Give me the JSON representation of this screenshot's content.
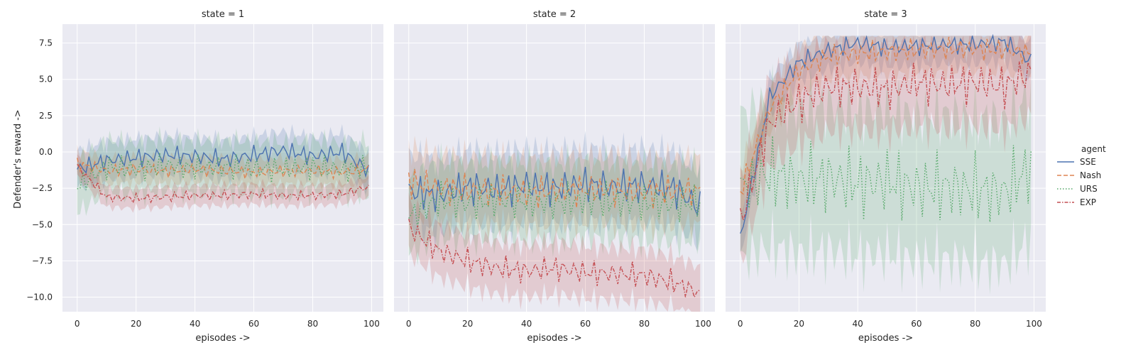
{
  "chart_data": {
    "type": "line",
    "ylabel": "Defender's reward ->",
    "xlabel": "episodes ->",
    "xlim": [
      -5,
      104
    ],
    "ylim": [
      -11,
      8.8
    ],
    "xticks": [
      0,
      20,
      40,
      60,
      80,
      100
    ],
    "yticks": [
      -10.0,
      -7.5,
      -5.0,
      -2.5,
      0.0,
      2.5,
      5.0,
      7.5
    ],
    "ytick_labels": [
      "−10.0",
      "−7.5",
      "−5.0",
      "−2.5",
      "0.0",
      "2.5",
      "5.0",
      "7.5"
    ],
    "grid": true,
    "legend": {
      "title": "agent",
      "placement": "right",
      "entries": [
        {
          "name": "SSE",
          "color": "#4c72b0",
          "dash": "solid"
        },
        {
          "name": "Nash",
          "color": "#dd8452",
          "dash": "dashed"
        },
        {
          "name": "URS",
          "color": "#55a868",
          "dash": "dotted"
        },
        {
          "name": "EXP",
          "color": "#c44e52",
          "dash": "dashdot"
        }
      ]
    },
    "panels": [
      {
        "title": "state = 1",
        "series": [
          {
            "name": "SSE",
            "color": "#4c72b0",
            "band": 1.3,
            "x": [
              0,
              10,
              20,
              30,
              40,
              50,
              60,
              70,
              80,
              90,
              99
            ],
            "y": [
              -1.2,
              -0.6,
              -0.4,
              -0.2,
              -0.3,
              -0.5,
              -0.2,
              0.1,
              -0.3,
              0.0,
              -1.3
            ]
          },
          {
            "name": "Nash",
            "color": "#dd8452",
            "band": 0.9,
            "x": [
              0,
              10,
              20,
              30,
              40,
              50,
              60,
              70,
              80,
              90,
              99
            ],
            "y": [
              -0.8,
              -1.3,
              -1.2,
              -1.3,
              -1.2,
              -1.3,
              -1.4,
              -1.3,
              -1.3,
              -1.4,
              -1.2
            ]
          },
          {
            "name": "URS",
            "color": "#55a868",
            "band": 1.8,
            "x": [
              0,
              10,
              20,
              30,
              40,
              50,
              60,
              70,
              80,
              90,
              99
            ],
            "y": [
              -2.4,
              -1.0,
              -1.2,
              -0.9,
              -1.1,
              -1.0,
              -1.1,
              -1.2,
              -1.0,
              -1.2,
              -1.1
            ]
          },
          {
            "name": "EXP",
            "color": "#c44e52",
            "band": 0.7,
            "x": [
              0,
              10,
              20,
              30,
              40,
              50,
              60,
              70,
              80,
              90,
              99
            ],
            "y": [
              -1.0,
              -3.1,
              -3.2,
              -3.1,
              -3.0,
              -3.0,
              -2.9,
              -3.0,
              -3.0,
              -2.9,
              -2.4
            ]
          }
        ]
      },
      {
        "title": "state = 2",
        "series": [
          {
            "name": "SSE",
            "color": "#4c72b0",
            "band": 2.5,
            "x": [
              0,
              10,
              20,
              30,
              40,
              50,
              60,
              70,
              80,
              90,
              99
            ],
            "y": [
              -2.7,
              -3.0,
              -2.4,
              -2.6,
              -2.3,
              -2.5,
              -2.2,
              -2.4,
              -2.3,
              -2.5,
              -3.8
            ]
          },
          {
            "name": "Nash",
            "color": "#dd8452",
            "band": 2.3,
            "x": [
              0,
              10,
              20,
              30,
              40,
              50,
              60,
              70,
              80,
              90,
              99
            ],
            "y": [
              -2.0,
              -2.5,
              -2.6,
              -2.7,
              -2.8,
              -2.7,
              -2.6,
              -2.6,
              -2.8,
              -2.7,
              -2.7
            ]
          },
          {
            "name": "URS",
            "color": "#55a868",
            "band": 2.6,
            "x": [
              0,
              10,
              20,
              30,
              40,
              50,
              60,
              70,
              80,
              90,
              99
            ],
            "y": [
              -4.5,
              -3.3,
              -3.5,
              -3.3,
              -3.4,
              -3.5,
              -3.3,
              -3.4,
              -3.5,
              -3.6,
              -3.4
            ]
          },
          {
            "name": "EXP",
            "color": "#c44e52",
            "band": 1.8,
            "x": [
              0,
              10,
              20,
              30,
              40,
              50,
              60,
              70,
              80,
              90,
              99
            ],
            "y": [
              -5.2,
              -6.8,
              -7.5,
              -8.0,
              -8.2,
              -8.0,
              -8.3,
              -8.4,
              -8.5,
              -9.0,
              -9.8
            ]
          }
        ]
      },
      {
        "title": "state = 3",
        "series": [
          {
            "name": "SSE",
            "color": "#4c72b0",
            "band": 1.3,
            "x": [
              0,
              10,
              20,
              30,
              40,
              50,
              60,
              70,
              80,
              90,
              99
            ],
            "y": [
              -6.0,
              3.8,
              6.2,
              7.0,
              7.5,
              7.2,
              7.3,
              7.4,
              7.4,
              7.6,
              6.2
            ]
          },
          {
            "name": "Nash",
            "color": "#dd8452",
            "band": 1.6,
            "x": [
              0,
              10,
              20,
              30,
              40,
              50,
              60,
              70,
              80,
              90,
              99
            ],
            "y": [
              -2.8,
              3.0,
              5.6,
              6.6,
              6.8,
              6.9,
              7.0,
              7.1,
              7.1,
              7.0,
              6.8
            ]
          },
          {
            "name": "URS",
            "color": "#55a868",
            "band": 5.0,
            "x": [
              0,
              10,
              20,
              30,
              40,
              50,
              60,
              70,
              80,
              90,
              99
            ],
            "y": [
              -2.5,
              -1.5,
              -2.0,
              -1.8,
              -2.2,
              -2.0,
              -2.5,
              -2.4,
              -2.6,
              -2.8,
              -1.0
            ]
          },
          {
            "name": "EXP",
            "color": "#c44e52",
            "band": 3.0,
            "x": [
              0,
              10,
              20,
              30,
              40,
              50,
              60,
              70,
              80,
              90,
              99
            ],
            "y": [
              -4.8,
              2.0,
              3.5,
              4.5,
              4.5,
              4.3,
              4.8,
              4.6,
              4.8,
              4.5,
              5.5
            ]
          }
        ]
      }
    ]
  }
}
